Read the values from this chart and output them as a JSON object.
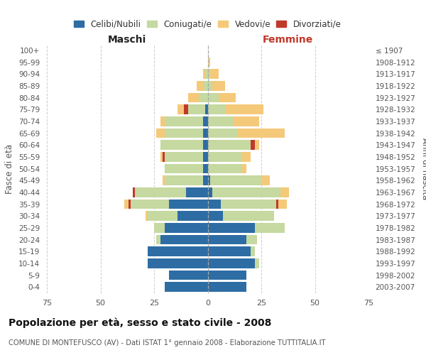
{
  "age_groups": [
    "0-4",
    "5-9",
    "10-14",
    "15-19",
    "20-24",
    "25-29",
    "30-34",
    "35-39",
    "40-44",
    "45-49",
    "50-54",
    "55-59",
    "60-64",
    "65-69",
    "70-74",
    "75-79",
    "80-84",
    "85-89",
    "90-94",
    "95-99",
    "100+"
  ],
  "years": [
    "2003-2007",
    "1998-2002",
    "1993-1997",
    "1988-1992",
    "1983-1987",
    "1978-1982",
    "1973-1977",
    "1968-1972",
    "1963-1967",
    "1958-1962",
    "1953-1957",
    "1948-1952",
    "1943-1947",
    "1938-1942",
    "1933-1937",
    "1928-1932",
    "1923-1927",
    "1918-1922",
    "1913-1917",
    "1908-1912",
    "≤ 1907"
  ],
  "maschi": {
    "celibi": [
      20,
      18,
      28,
      28,
      22,
      20,
      14,
      18,
      10,
      2,
      2,
      2,
      2,
      2,
      2,
      1,
      0,
      0,
      0,
      0,
      0
    ],
    "coniugati": [
      0,
      0,
      0,
      0,
      2,
      5,
      14,
      18,
      24,
      18,
      18,
      18,
      20,
      18,
      18,
      8,
      4,
      2,
      1,
      0,
      0
    ],
    "vedovi": [
      0,
      0,
      0,
      0,
      0,
      0,
      1,
      2,
      0,
      1,
      0,
      1,
      0,
      4,
      2,
      3,
      5,
      3,
      1,
      0,
      0
    ],
    "divorziati": [
      0,
      0,
      0,
      0,
      0,
      0,
      0,
      1,
      1,
      0,
      0,
      1,
      0,
      0,
      0,
      2,
      0,
      0,
      0,
      0,
      0
    ]
  },
  "femmine": {
    "nubili": [
      18,
      18,
      22,
      20,
      18,
      22,
      7,
      6,
      2,
      1,
      0,
      0,
      0,
      0,
      0,
      0,
      0,
      0,
      0,
      0,
      0
    ],
    "coniugate": [
      0,
      0,
      2,
      2,
      5,
      14,
      24,
      26,
      32,
      24,
      16,
      16,
      20,
      14,
      12,
      8,
      5,
      2,
      1,
      0,
      0
    ],
    "vedove": [
      0,
      0,
      0,
      0,
      0,
      0,
      0,
      4,
      4,
      4,
      2,
      4,
      2,
      22,
      12,
      18,
      8,
      6,
      4,
      1,
      0
    ],
    "divorziate": [
      0,
      0,
      0,
      0,
      0,
      0,
      0,
      1,
      0,
      0,
      0,
      0,
      2,
      0,
      0,
      0,
      0,
      0,
      0,
      0,
      0
    ]
  },
  "colors": {
    "celibi_nubili": "#2e6da4",
    "coniugati": "#c5d9a0",
    "vedovi": "#f5c97a",
    "divorziati": "#c0392b"
  },
  "title": "Popolazione per età, sesso e stato civile - 2008",
  "subtitle": "COMUNE DI MONTEFUSCO (AV) - Dati ISTAT 1° gennaio 2008 - Elaborazione TUTTITALIA.IT",
  "xlabel_left": "Maschi",
  "xlabel_right": "Femmine",
  "ylabel_left": "Fasce di età",
  "ylabel_right": "Anni di nascita",
  "xlim": 75,
  "legend_labels": [
    "Celibi/Nubili",
    "Coniugati/e",
    "Vedovi/e",
    "Divorziati/e"
  ],
  "background_color": "#ffffff",
  "grid_color": "#cccccc"
}
